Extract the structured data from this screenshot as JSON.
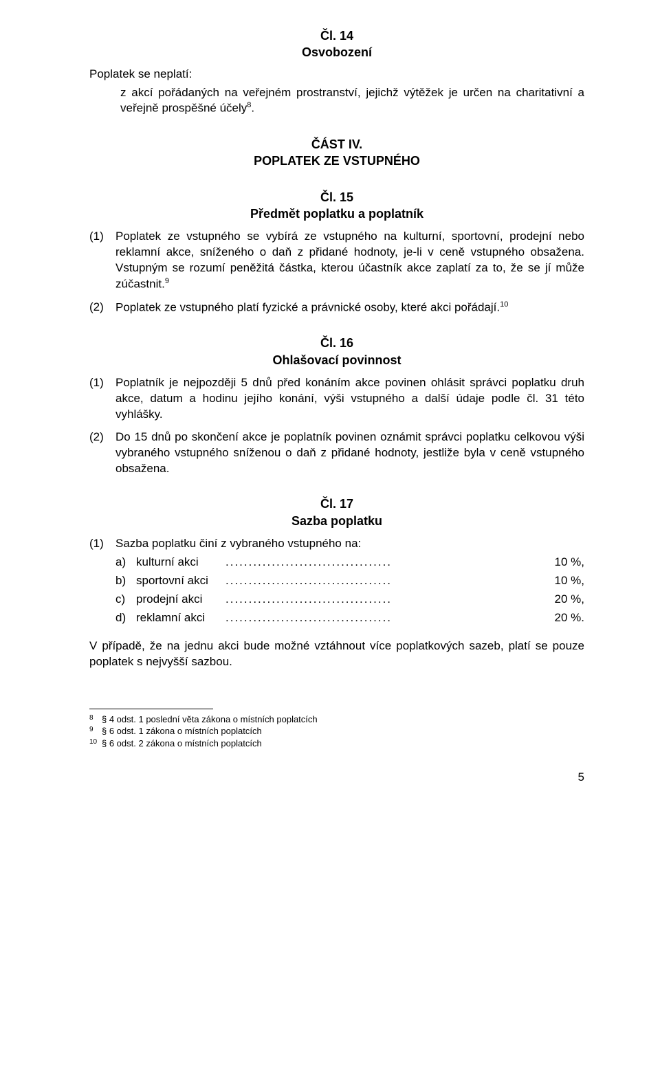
{
  "art14": {
    "heading": "Čl. 14",
    "subheading": "Osvobození",
    "p1": "Poplatek se neplatí:",
    "p2_prefix": "z akcí pořádaných na veřejném prostranství, jejichž výtěžek je určen na charitativní a veřejně prospěšné účely",
    "p2_sup": "8",
    "p2_suffix": "."
  },
  "part4": {
    "heading": "ČÁST IV.",
    "subheading": "POPLATEK ZE VSTUPNÉHO"
  },
  "art15": {
    "heading": "Čl. 15",
    "subheading": "Předmět poplatku a poplatník",
    "n1_num": "(1)",
    "n1_text_a": "Poplatek ze vstupného se vybírá ze vstupného na kulturní, sportovní, prodejní nebo reklamní akce, sníženého o daň z přidané hodnoty, je-li v ceně vstupného obsažena. Vstupným se rozumí peněžitá částka, kterou účastník akce zaplatí za to, že se jí může zúčastnit.",
    "n1_sup": "9",
    "n2_num": "(2)",
    "n2_text": "Poplatek ze vstupného platí fyzické a právnické osoby, které akci pořádají.",
    "n2_sup": "10"
  },
  "art16": {
    "heading": "Čl. 16",
    "subheading": "Ohlašovací povinnost",
    "n1_num": "(1)",
    "n1_text": "Poplatník je nejpozději 5 dnů před konáním akce povinen ohlásit správci poplatku druh akce, datum a hodinu jejího konání, výši vstupného a další údaje podle čl. 31 této vyhlášky.",
    "n2_num": "(2)",
    "n2_text": "Do 15 dnů po skončení akce je poplatník povinen oznámit správci poplatku celkovou výši vybraného vstupného sníženou o daň z přidané hodnoty, jestliže byla v ceně vstupného obsažena."
  },
  "art17": {
    "heading": "Čl. 17",
    "subheading": "Sazba poplatku",
    "n1_num": "(1)",
    "n1_text": "Sazba poplatku činí z vybraného vstupného na:",
    "rows": [
      {
        "letter": "a)",
        "label": "kulturní akci",
        "value": "10 %,"
      },
      {
        "letter": "b)",
        "label": "sportovní akci",
        "value": "10 %,"
      },
      {
        "letter": "c)",
        "label": "prodejní akci",
        "value": "20 %,"
      },
      {
        "letter": "d)",
        "label": "reklamní akci",
        "value": "20 %."
      }
    ],
    "closing": "V případě, že na jednu akci bude možné vztáhnout více poplatkových sazeb, platí se pouze poplatek s nejvyšší sazbou."
  },
  "footnotes": [
    {
      "num": "8",
      "text": "§ 4 odst. 1 poslední věta zákona o místních poplatcích"
    },
    {
      "num": "9",
      "text": "§ 6 odst. 1 zákona o místních poplatcích"
    },
    {
      "num": "10",
      "text": "§ 6 odst. 2 zákona o místních poplatcích"
    }
  ],
  "page_number": "5",
  "dots": "...................................."
}
